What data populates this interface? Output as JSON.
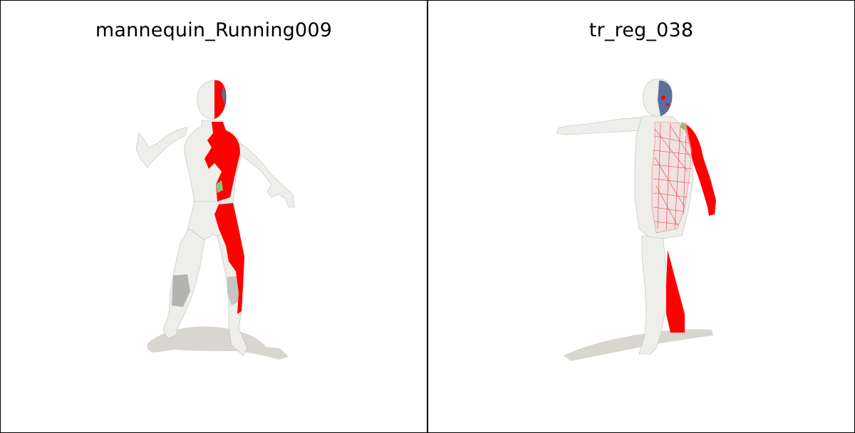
{
  "panels": [
    {
      "title": "mannequin_Running009"
    },
    {
      "title": "tr_reg_038"
    }
  ],
  "colors": {
    "mesh": "#eeeeea",
    "mesh_edge": "#b8b8b4",
    "highlight": "#ff0000",
    "blue": "#5a6f9c",
    "shadow": "#d8d6cf",
    "green": "#8fbf7a"
  }
}
